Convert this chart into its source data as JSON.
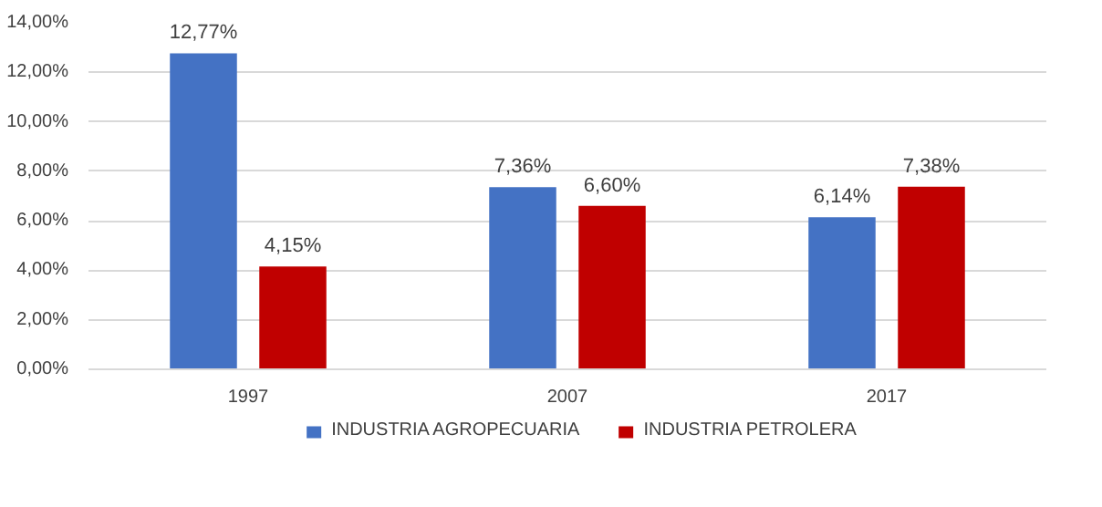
{
  "chart_data": {
    "type": "bar",
    "categories": [
      "1997",
      "2007",
      "2017"
    ],
    "series": [
      {
        "name": "INDUSTRIA AGROPECUARIA",
        "color": "#4472c4",
        "values": [
          12.77,
          7.36,
          6.14
        ],
        "value_labels": [
          "12,77%",
          "7,36%",
          "6,14%"
        ]
      },
      {
        "name": "INDUSTRIA PETROLERA",
        "color": "#c00000",
        "values": [
          4.15,
          6.6,
          7.38
        ],
        "value_labels": [
          "4,15%",
          "6,60%",
          "7,38%"
        ]
      }
    ],
    "ylim": [
      0,
      14
    ],
    "yticks": [
      {
        "value": 0,
        "label": "0,00%"
      },
      {
        "value": 2,
        "label": "2,00%"
      },
      {
        "value": 4,
        "label": "4,00%"
      },
      {
        "value": 6,
        "label": "6,00%"
      },
      {
        "value": 8,
        "label": "8,00%"
      },
      {
        "value": 10,
        "label": "10,00%"
      },
      {
        "value": 12,
        "label": "12,00%"
      },
      {
        "value": 14,
        "label": "14,00%"
      }
    ],
    "grid": "y",
    "legend": "bottom"
  }
}
